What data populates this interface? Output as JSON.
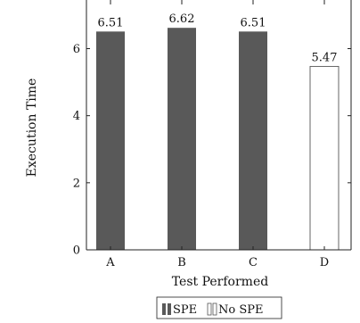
{
  "chart_data": {
    "type": "bar",
    "categories": [
      "A",
      "B",
      "C",
      "D"
    ],
    "series": [
      {
        "name": "SPE",
        "values": [
          6.51,
          6.62,
          6.51,
          null
        ],
        "color": "#595959"
      },
      {
        "name": "No SPE",
        "values": [
          null,
          null,
          null,
          5.47
        ],
        "color": "#ffffff"
      }
    ],
    "data_labels": [
      "6.51",
      "6.62",
      "6.51",
      "5.47"
    ],
    "xlabel": "Test Performed",
    "ylabel": "Execution Time",
    "ylim": [
      0,
      7.45
    ],
    "yticks": [
      "0",
      "2",
      "4",
      "6"
    ],
    "grid": false,
    "legend_placement": "bottom-center"
  }
}
